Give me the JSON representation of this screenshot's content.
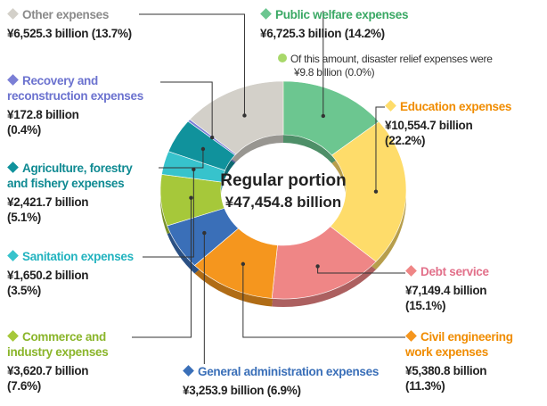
{
  "chart_data": {
    "type": "pie",
    "center_label": "Regular portion",
    "total": 47454.8,
    "total_label": "¥47,454.8 billion",
    "series": [
      {
        "name": "Public welfare expenses",
        "value": 6725.3,
        "value_label": "¥6,725.3 billion",
        "percent": 14.2,
        "percent_label": "(14.2%)",
        "color": "#6cc690",
        "label_color": "#3aa864"
      },
      {
        "name": "Education expenses",
        "value": 10554.7,
        "value_label": "¥10,554.7 billion",
        "percent": 22.2,
        "percent_label": "(22.2%)",
        "color": "#fedc6a",
        "label_color": "#f08c00"
      },
      {
        "name": "Debt service",
        "value": 7149.4,
        "value_label": "¥7,149.4 billion",
        "percent": 15.1,
        "percent_label": "(15.1%)",
        "color": "#ef8686",
        "label_color": "#e2708a"
      },
      {
        "name": "Civil engineering\nwork expenses",
        "value": 5380.8,
        "value_label": "¥5,380.8 billion",
        "percent": 11.3,
        "percent_label": "(11.3%)",
        "color": "#f5961e",
        "label_color": "#f08c00"
      },
      {
        "name": "General administration expenses",
        "value": 3253.9,
        "value_label": "¥3,253.9 billion",
        "percent": 6.9,
        "percent_label": "(6.9%)",
        "color": "#3a6fb8",
        "label_color": "#3a6fb8"
      },
      {
        "name": "Commerce and\nindustry expenses",
        "value": 3620.7,
        "value_label": "¥3,620.7 billion",
        "percent": 7.6,
        "percent_label": "(7.6%)",
        "color": "#a6c83a",
        "label_color": "#8ab52a"
      },
      {
        "name": "Sanitation expenses",
        "value": 1650.2,
        "value_label": "¥1,650.2 billion",
        "percent": 3.5,
        "percent_label": "(3.5%)",
        "color": "#37c3cc",
        "label_color": "#22b3bf"
      },
      {
        "name": "Agriculture, forestry\nand fishery expenses",
        "value": 2421.7,
        "value_label": "¥2,421.7 billion",
        "percent": 5.1,
        "percent_label": "(5.1%)",
        "color": "#10929c",
        "label_color": "#0f8a92"
      },
      {
        "name": "Recovery and\nreconstruction expenses",
        "value": 172.8,
        "value_label": "¥172.8 billion",
        "percent": 0.4,
        "percent_label": "(0.4%)",
        "color": "#7b7fd6",
        "label_color": "#6b72cf"
      },
      {
        "name": "Other expenses",
        "value": 6525.3,
        "value_label": "¥6,525.3 billion",
        "percent": 13.7,
        "percent_label": "(13.7%)",
        "color": "#d3d0c9",
        "label_color": "#8a8a8a"
      }
    ],
    "note": {
      "text": "Of this amount, disaster relief expenses were",
      "value": 9.8,
      "value_label": "¥9.8 billion",
      "percent": 0.0,
      "percent_label": "(0.0%)",
      "color": "#a8d86a"
    }
  }
}
